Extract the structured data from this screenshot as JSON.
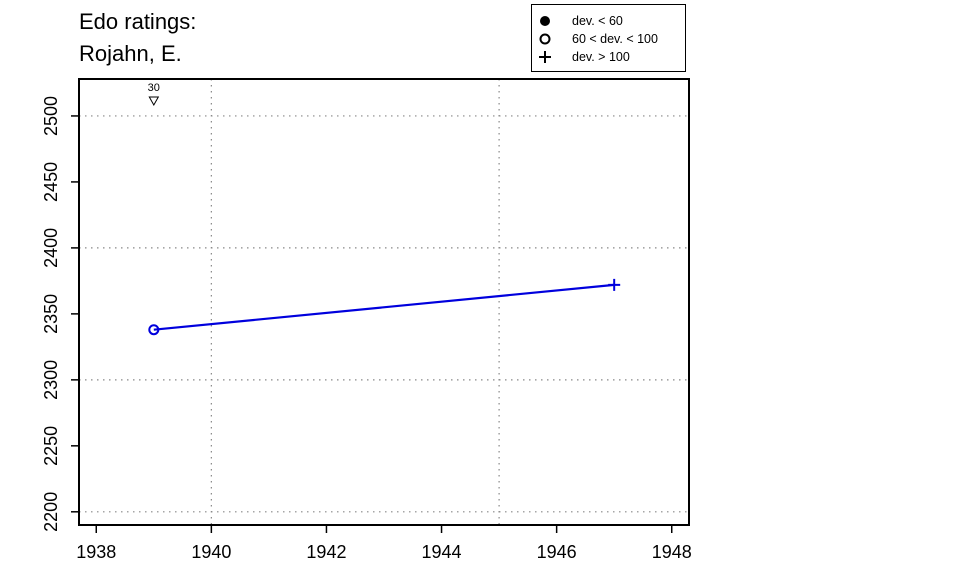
{
  "chart_data": {
    "type": "line",
    "title_lines": [
      "Edo ratings:",
      "Rojahn, E."
    ],
    "xlabel": "",
    "ylabel": "",
    "xlim": [
      1937.7,
      1948.3
    ],
    "ylim": [
      2190,
      2528
    ],
    "x_ticks": [
      1938,
      1940,
      1942,
      1944,
      1946,
      1948
    ],
    "y_ticks": [
      2200,
      2250,
      2300,
      2350,
      2400,
      2450,
      2500
    ],
    "x_grid": [
      1940,
      1945
    ],
    "y_grid": [
      2200,
      2300,
      2400,
      2500
    ],
    "grid": true,
    "series": [
      {
        "color": "#0000dd",
        "points": [
          {
            "x": 1939,
            "y": 2338,
            "marker": "open-circle"
          },
          {
            "x": 1947,
            "y": 2372,
            "marker": "plus"
          }
        ]
      }
    ],
    "annotations": [
      {
        "x": 1939,
        "label": "30",
        "marker": "open-triangle-down"
      }
    ],
    "legend": {
      "position": "top-right",
      "entries": [
        {
          "label": "dev. < 60",
          "marker": "filled-circle"
        },
        {
          "label": "60 < dev. < 100",
          "marker": "open-circle"
        },
        {
          "label": "dev. > 100",
          "marker": "plus"
        }
      ]
    }
  }
}
